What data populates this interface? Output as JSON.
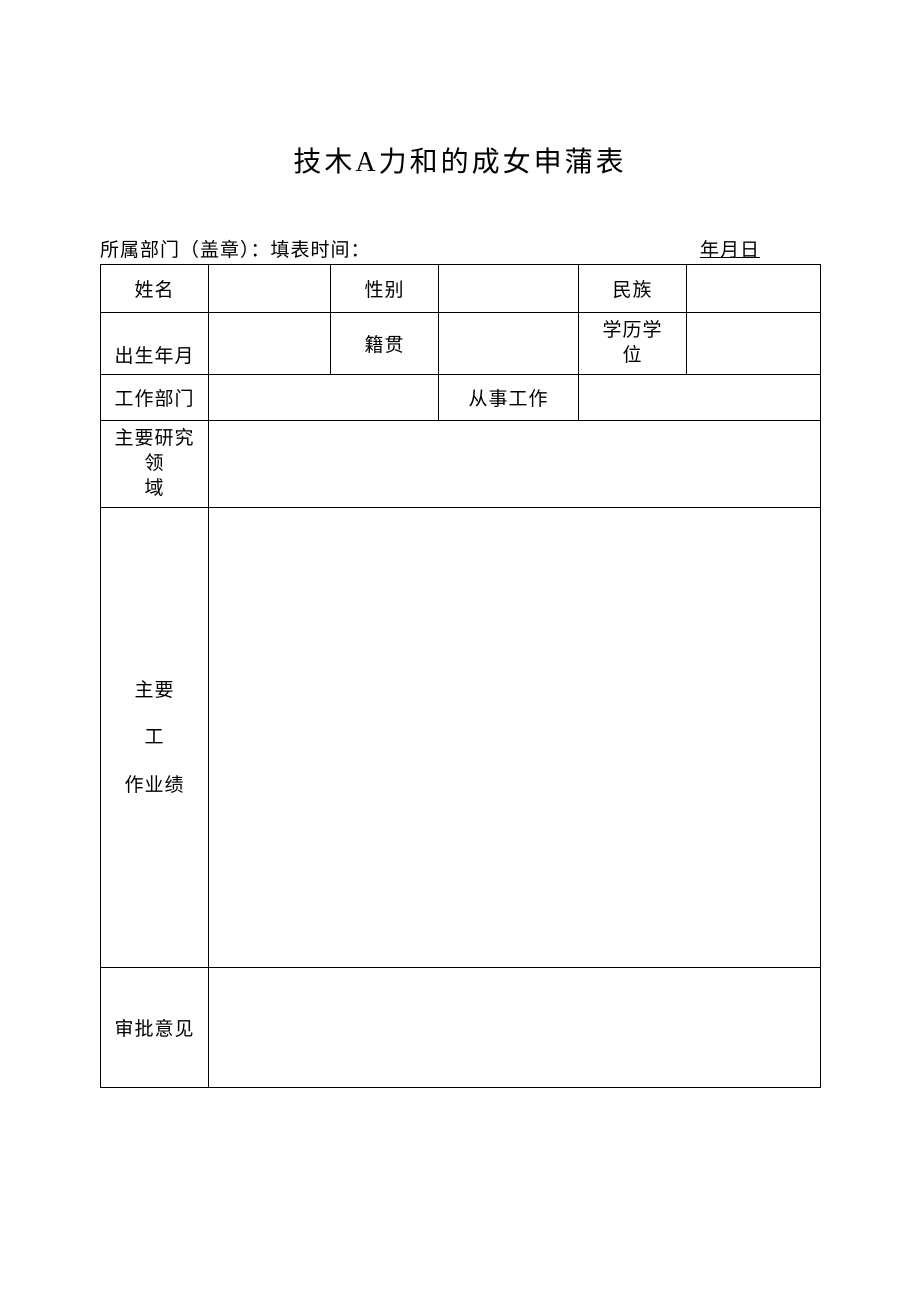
{
  "document": {
    "title": "技木A力和的成女申蒲表",
    "header_left": "所属部门（盖章）：填表时间：",
    "header_right": "年月日",
    "labels": {
      "name": "姓名",
      "gender": "性别",
      "ethnicity": "民族",
      "birth": "出生年月",
      "origin": "籍贯",
      "education_l1": "学历学",
      "education_l2": "位",
      "department": "工作部门",
      "work": "从事工作",
      "research_l1": "主要研究领",
      "research_l2": "域",
      "main_l1": "主要",
      "main_l2": "工",
      "main_l3": "作业绩",
      "review": "审批意见"
    },
    "values": {
      "name": "",
      "gender": "",
      "ethnicity": "",
      "birth": "",
      "origin": "",
      "education": "",
      "department": "",
      "work": "",
      "research": "",
      "main": "",
      "review": ""
    },
    "style": {
      "background_color": "#ffffff",
      "text_color": "#000000",
      "border_color": "#000000",
      "title_fontsize": 28,
      "body_fontsize": 19,
      "border_width": 1.5,
      "font_family": "SimSun"
    }
  }
}
